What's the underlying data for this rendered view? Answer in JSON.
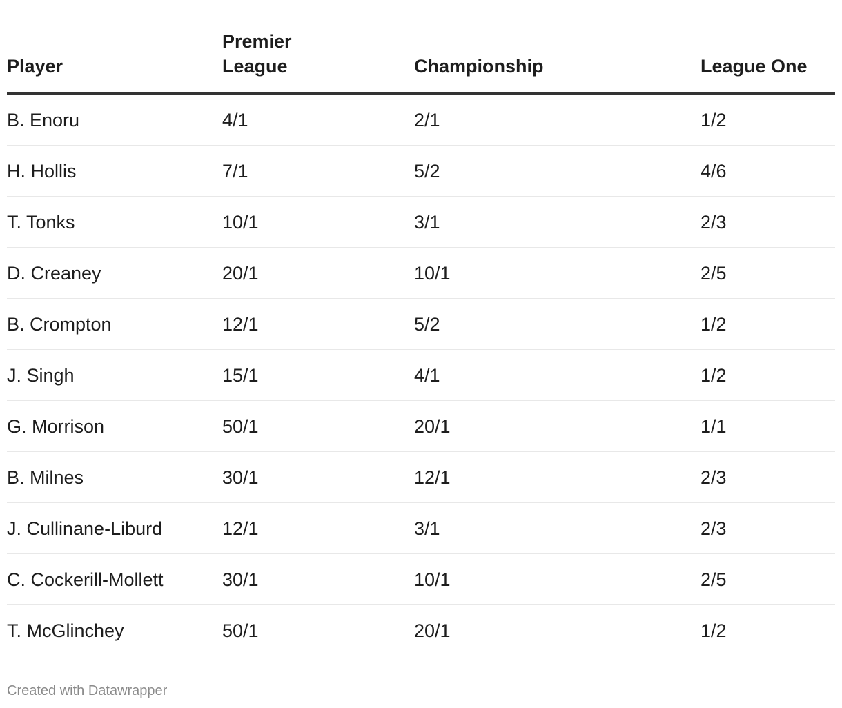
{
  "table": {
    "headers": [
      "Player",
      "Premier League",
      "Championship",
      "League One"
    ],
    "rows": [
      [
        "B. Enoru",
        "4/1",
        "2/1",
        "1/2"
      ],
      [
        "H. Hollis",
        "7/1",
        "5/2",
        "4/6"
      ],
      [
        "T. Tonks",
        "10/1",
        "3/1",
        "2/3"
      ],
      [
        "D. Creaney",
        "20/1",
        "10/1",
        "2/5"
      ],
      [
        "B. Crompton",
        "12/1",
        "5/2",
        "1/2"
      ],
      [
        "J. Singh",
        "15/1",
        "4/1",
        "1/2"
      ],
      [
        "G. Morrison",
        "50/1",
        "20/1",
        "1/1"
      ],
      [
        "B. Milnes",
        "30/1",
        "12/1",
        "2/3"
      ],
      [
        "J. Cullinane-Liburd",
        "12/1",
        "3/1",
        "2/3"
      ],
      [
        "C. Cockerill-Mollett",
        "30/1",
        "10/1",
        "2/5"
      ],
      [
        "T. McGlinchey",
        "50/1",
        "20/1",
        "1/2"
      ]
    ]
  },
  "footer": {
    "credit": "Created with Datawrapper"
  }
}
